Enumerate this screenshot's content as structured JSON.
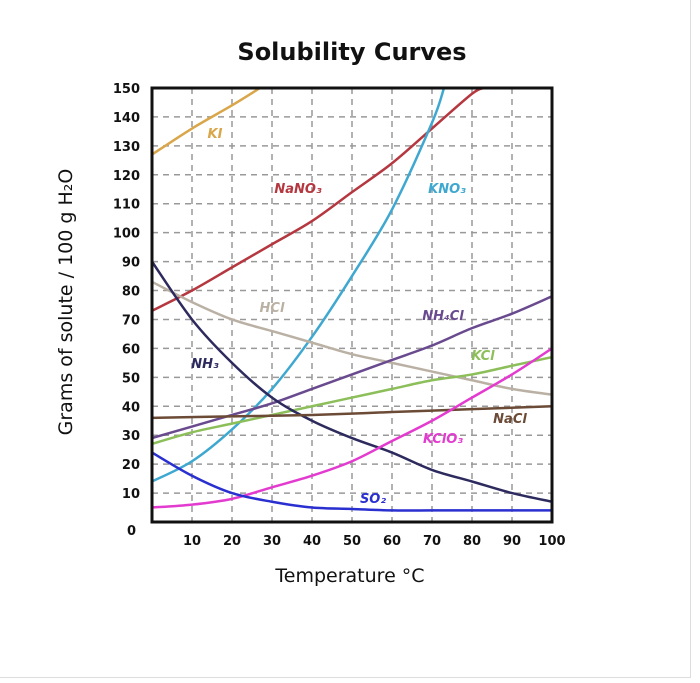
{
  "chart_data": {
    "type": "line",
    "title": "Solubility Curves",
    "xlabel": "Temperature °C",
    "ylabel": "Grams of solute / 100 g H₂O",
    "xlim": [
      0,
      100
    ],
    "ylim": [
      0,
      150
    ],
    "xticks": [
      "10",
      "20",
      "30",
      "40",
      "50",
      "60",
      "70",
      "80",
      "90",
      "100"
    ],
    "yticks": [
      "0",
      "10",
      "20",
      "30",
      "40",
      "50",
      "60",
      "70",
      "80",
      "90",
      "100",
      "110",
      "120",
      "130",
      "140",
      "150"
    ],
    "grid": true,
    "grid_style": "dashed",
    "legend": "inline labels",
    "series": [
      {
        "name": "KI",
        "color": "#d9a64a",
        "x": [
          0,
          10,
          20,
          27
        ],
        "y": [
          127,
          136,
          144,
          150
        ]
      },
      {
        "name": "NaNO₃",
        "color": "#b5373f",
        "x": [
          0,
          10,
          20,
          30,
          40,
          50,
          60,
          70,
          80,
          83
        ],
        "y": [
          73,
          80,
          88,
          96,
          104,
          114,
          124,
          136,
          148,
          150
        ]
      },
      {
        "name": "KNO₃",
        "color": "#3ea8d0",
        "x": [
          0,
          10,
          20,
          30,
          40,
          50,
          60,
          70,
          73
        ],
        "y": [
          14,
          21,
          32,
          46,
          64,
          85,
          108,
          138,
          150
        ]
      },
      {
        "name": "HCl",
        "color": "#bab1a4",
        "x": [
          0,
          10,
          20,
          30,
          40,
          50,
          60,
          70,
          80,
          90,
          100
        ],
        "y": [
          83,
          76,
          70,
          66,
          62,
          58,
          55,
          52,
          49,
          46,
          44
        ]
      },
      {
        "name": "NH₄Cl",
        "color": "#6a4a8f",
        "x": [
          0,
          10,
          20,
          30,
          40,
          50,
          60,
          70,
          80,
          90,
          100
        ],
        "y": [
          29,
          33,
          37,
          41,
          46,
          51,
          56,
          61,
          67,
          72,
          78
        ]
      },
      {
        "name": "KCl",
        "color": "#8cbf5a",
        "x": [
          0,
          10,
          20,
          30,
          40,
          50,
          60,
          70,
          80,
          90,
          100
        ],
        "y": [
          27,
          31,
          34,
          37,
          40,
          43,
          46,
          49,
          51,
          54,
          57
        ]
      },
      {
        "name": "NH₃",
        "color": "#2d2a5e",
        "x": [
          0,
          10,
          20,
          30,
          40,
          50,
          60,
          70,
          80,
          90,
          100
        ],
        "y": [
          90,
          70,
          55,
          43,
          35,
          29,
          24,
          18,
          14,
          10,
          7
        ]
      },
      {
        "name": "NaCl",
        "color": "#6b4a36",
        "x": [
          0,
          20,
          40,
          60,
          80,
          100
        ],
        "y": [
          36,
          36.5,
          37,
          38,
          39,
          40
        ]
      },
      {
        "name": "KClO₃",
        "color": "#e33bcf",
        "x": [
          0,
          10,
          20,
          30,
          40,
          50,
          60,
          70,
          80,
          90,
          100
        ],
        "y": [
          5,
          6,
          8,
          12,
          16,
          21,
          28,
          35,
          43,
          51,
          60
        ]
      },
      {
        "name": "SO₂",
        "color": "#2a2fd0",
        "x": [
          0,
          10,
          20,
          30,
          40,
          50,
          60,
          70,
          80,
          90,
          100
        ],
        "y": [
          24,
          16,
          10,
          7,
          5,
          4.5,
          4,
          4,
          4,
          4,
          4
        ]
      }
    ]
  }
}
